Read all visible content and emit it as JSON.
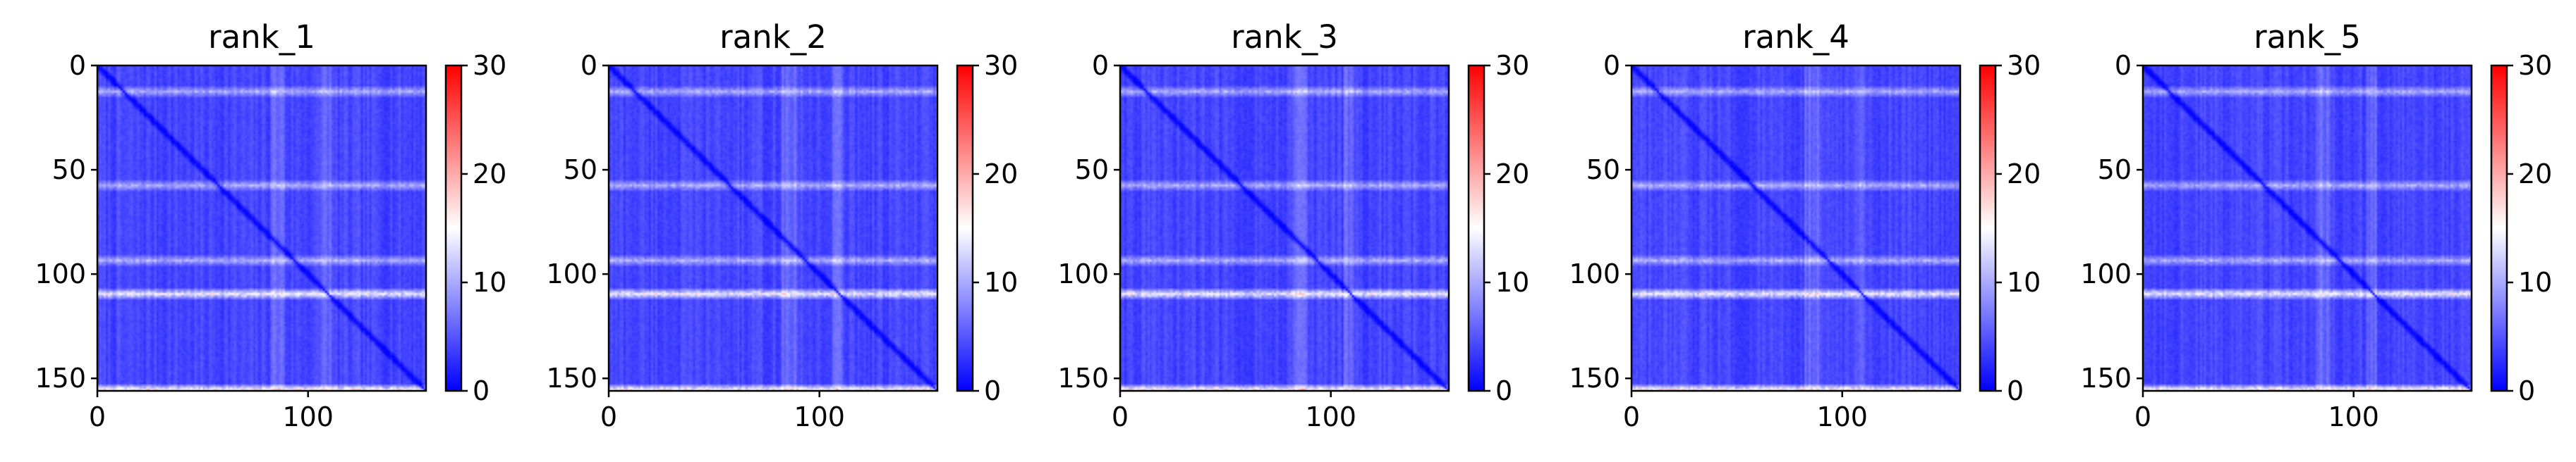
{
  "chart_data": [
    {
      "type": "heatmap",
      "title": "rank_1",
      "matrix_size": 156,
      "xticks": [
        "0",
        "100"
      ],
      "yticks": [
        "0",
        "50",
        "100",
        "150"
      ],
      "xlim": [
        0,
        156
      ],
      "ylim": [
        156,
        0
      ],
      "colorbar": {
        "ticks": [
          "0",
          "10",
          "20",
          "30"
        ],
        "range": [
          0,
          30
        ],
        "colormap": "bwr"
      },
      "features": {
        "diagonal": 1.0,
        "stripe_rows": [
          12,
          57,
          93,
          109,
          155
        ]
      }
    },
    {
      "type": "heatmap",
      "title": "rank_2",
      "matrix_size": 156,
      "xticks": [
        "0",
        "100"
      ],
      "yticks": [
        "0",
        "50",
        "100",
        "150"
      ],
      "xlim": [
        0,
        156
      ],
      "ylim": [
        156,
        0
      ],
      "colorbar": {
        "ticks": [
          "0",
          "10",
          "20",
          "30"
        ],
        "range": [
          0,
          30
        ],
        "colormap": "bwr"
      },
      "features": {
        "diagonal": 1.0,
        "stripe_rows": [
          12,
          57,
          93,
          109,
          155
        ]
      }
    },
    {
      "type": "heatmap",
      "title": "rank_3",
      "matrix_size": 156,
      "xticks": [
        "0",
        "100"
      ],
      "yticks": [
        "0",
        "50",
        "100",
        "150"
      ],
      "xlim": [
        0,
        156
      ],
      "ylim": [
        156,
        0
      ],
      "colorbar": {
        "ticks": [
          "0",
          "10",
          "20",
          "30"
        ],
        "range": [
          0,
          30
        ],
        "colormap": "bwr"
      },
      "features": {
        "diagonal": 1.0,
        "stripe_rows": [
          12,
          57,
          93,
          109,
          155
        ]
      }
    },
    {
      "type": "heatmap",
      "title": "rank_4",
      "matrix_size": 156,
      "xticks": [
        "0",
        "100"
      ],
      "yticks": [
        "0",
        "50",
        "100",
        "150"
      ],
      "xlim": [
        0,
        156
      ],
      "ylim": [
        156,
        0
      ],
      "colorbar": {
        "ticks": [
          "0",
          "10",
          "20",
          "30"
        ],
        "range": [
          0,
          30
        ],
        "colormap": "bwr"
      },
      "features": {
        "diagonal": 1.0,
        "stripe_rows": [
          12,
          57,
          93,
          109,
          155
        ]
      }
    },
    {
      "type": "heatmap",
      "title": "rank_5",
      "matrix_size": 156,
      "xticks": [
        "0",
        "100"
      ],
      "yticks": [
        "0",
        "50",
        "100",
        "150"
      ],
      "xlim": [
        0,
        156
      ],
      "ylim": [
        156,
        0
      ],
      "colorbar": {
        "ticks": [
          "0",
          "10",
          "20",
          "30"
        ],
        "range": [
          0,
          30
        ],
        "colormap": "bwr"
      },
      "features": {
        "diagonal": 1.0,
        "stripe_rows": [
          12,
          57,
          93,
          109,
          155
        ]
      }
    }
  ],
  "colors": {
    "low": "#0000ff",
    "mid": "#ffffff",
    "high": "#ff0000"
  }
}
